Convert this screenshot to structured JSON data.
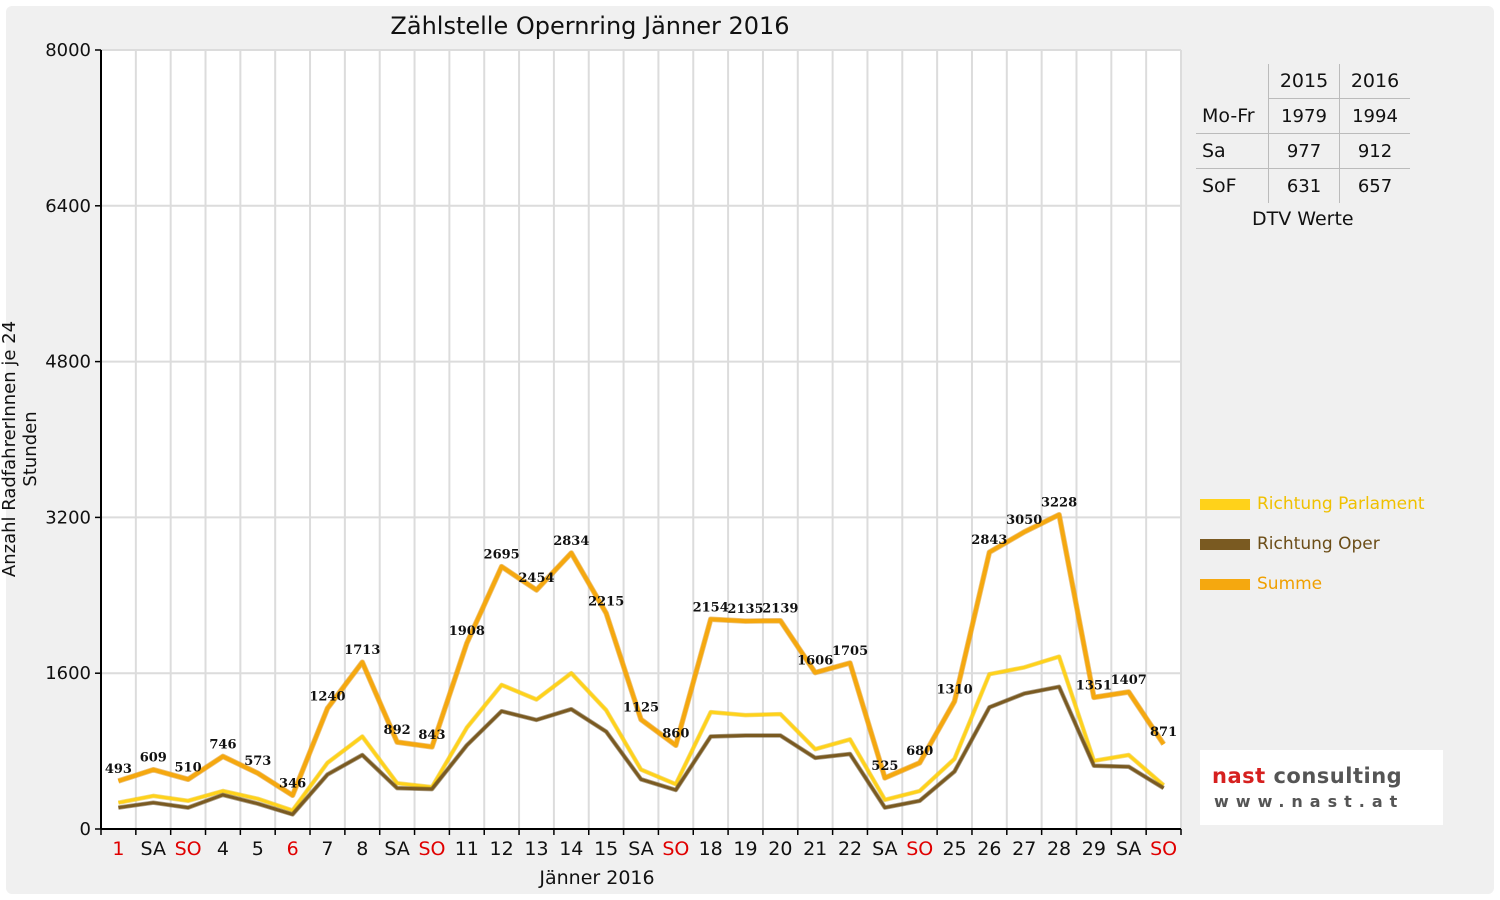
{
  "chart_data": {
    "type": "line",
    "title": "Zählstelle Opernring Jänner 2016",
    "xlabel": "Jänner 2016",
    "ylabel": "Anzahl RadfahrerInnen je 24 Stunden",
    "ylim": [
      0,
      8000
    ],
    "yticks": [
      "0",
      "1600",
      "3200",
      "4800",
      "6400",
      "8000"
    ],
    "grid": true,
    "categories": [
      "1",
      "SA",
      "SO",
      "4",
      "5",
      "6",
      "7",
      "8",
      "SA",
      "SO",
      "11",
      "12",
      "13",
      "14",
      "15",
      "SA",
      "SO",
      "18",
      "19",
      "20",
      "21",
      "22",
      "SA",
      "SO",
      "25",
      "26",
      "27",
      "28",
      "29",
      "SA",
      "SO"
    ],
    "red_categories": [
      0,
      2,
      5,
      9,
      16,
      23,
      30
    ],
    "series": [
      {
        "name": "Richtung Parlament",
        "color": "#ffd21a",
        "values": [
          270,
          340,
          290,
          390,
          310,
          190,
          680,
          950,
          470,
          430,
          1040,
          1480,
          1330,
          1600,
          1220,
          610,
          460,
          1200,
          1170,
          1180,
          820,
          920,
          300,
          390,
          720,
          1590,
          1660,
          1770,
          700,
          760,
          450
        ]
      },
      {
        "name": "Richtung Oper",
        "color": "#7a5a21",
        "values": [
          220,
          270,
          220,
          350,
          260,
          150,
          560,
          760,
          420,
          410,
          860,
          1210,
          1120,
          1230,
          1000,
          510,
          400,
          950,
          960,
          960,
          730,
          770,
          220,
          290,
          590,
          1250,
          1390,
          1460,
          650,
          640,
          420
        ]
      },
      {
        "name": "Summe",
        "color": "#f5a80f",
        "values": [
          493,
          609,
          510,
          746,
          573,
          346,
          1240,
          1713,
          892,
          843,
          1908,
          2695,
          2454,
          2834,
          2215,
          1125,
          860,
          2154,
          2135,
          2139,
          1606,
          1705,
          525,
          680,
          1310,
          2843,
          3050,
          3228,
          1351,
          1407,
          871
        ]
      }
    ],
    "data_labels": [
      "493",
      "609",
      "510",
      "746",
      "573",
      "346",
      "1240",
      "1713",
      "892",
      "843",
      "1908",
      "2695",
      "2454",
      "2834",
      "2215",
      "1125",
      "860",
      "2154",
      "2135",
      "2139",
      "1606",
      "1705",
      "525",
      "680",
      "1310",
      "2843",
      "3050",
      "3228",
      "1351",
      "1407",
      "871"
    ],
    "legend_position": "right"
  },
  "dtv_table": {
    "headers": [
      "2015",
      "2016"
    ],
    "rows": [
      {
        "label": "Mo-Fr",
        "v2015": "1979",
        "v2016": "1994"
      },
      {
        "label": "Sa",
        "v2015": "977",
        "v2016": "912"
      },
      {
        "label": "SoF",
        "v2015": "631",
        "v2016": "657"
      }
    ],
    "caption": "DTV Werte"
  },
  "logo": {
    "word1": "nast",
    "word2": "consulting",
    "url": "www.nast.at"
  }
}
